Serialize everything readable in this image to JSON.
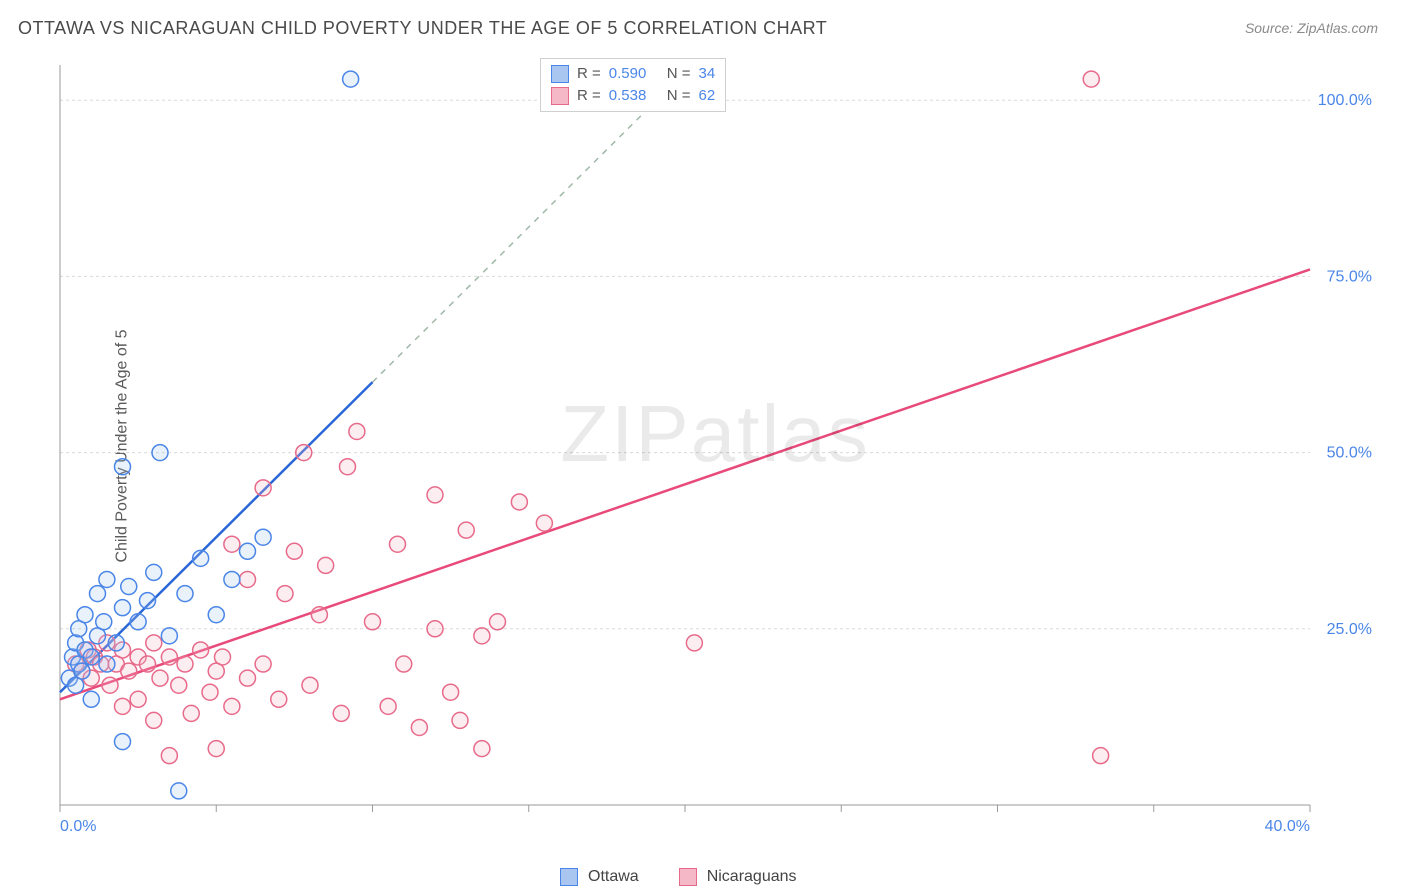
{
  "title": "OTTAWA VS NICARAGUAN CHILD POVERTY UNDER THE AGE OF 5 CORRELATION CHART",
  "source": "Source: ZipAtlas.com",
  "ylabel": "Child Poverty Under the Age of 5",
  "watermark_zip": "ZIP",
  "watermark_atlas": "atlas",
  "chart": {
    "type": "scatter",
    "xlim": [
      0,
      40
    ],
    "ylim": [
      0,
      105
    ],
    "x_first_tick": 0.0,
    "x_last_tick": 40.0,
    "x_tick_step": 5.0,
    "y_ticks": [
      25.0,
      50.0,
      75.0,
      100.0
    ],
    "grid_color": "#d9d9d9",
    "axis_color": "#9a9a9a",
    "label_color": "#4a86e8",
    "background_color": "#ffffff",
    "marker_radius": 8,
    "marker_stroke_width": 1.5,
    "marker_fill_opacity": 0.25,
    "series": {
      "ottawa": {
        "label": "Ottawa",
        "color_stroke": "#4a86e8",
        "color_fill": "#a8c6f0",
        "trend_color": "#2a66d8",
        "trend_dash_color": "#9fb8a8",
        "trend": {
          "x1": 0,
          "y1": 16,
          "x2": 10,
          "y2": 60,
          "dash_to_x": 19
        },
        "points": [
          [
            0.3,
            18
          ],
          [
            0.4,
            21
          ],
          [
            0.5,
            17
          ],
          [
            0.5,
            23
          ],
          [
            0.6,
            20
          ],
          [
            0.6,
            25
          ],
          [
            0.7,
            19
          ],
          [
            0.8,
            22
          ],
          [
            0.8,
            27
          ],
          [
            1.0,
            15
          ],
          [
            1.0,
            21
          ],
          [
            1.2,
            24
          ],
          [
            1.2,
            30
          ],
          [
            1.4,
            26
          ],
          [
            1.5,
            20
          ],
          [
            1.5,
            32
          ],
          [
            1.8,
            23
          ],
          [
            2.0,
            28
          ],
          [
            2.0,
            48
          ],
          [
            2.2,
            31
          ],
          [
            2.5,
            26
          ],
          [
            2.8,
            29
          ],
          [
            3.0,
            33
          ],
          [
            3.2,
            50
          ],
          [
            3.5,
            24
          ],
          [
            4.0,
            30
          ],
          [
            4.5,
            35
          ],
          [
            5.0,
            27
          ],
          [
            5.5,
            32
          ],
          [
            6.0,
            36
          ],
          [
            6.5,
            38
          ],
          [
            3.8,
            2
          ],
          [
            2.0,
            9
          ],
          [
            9.3,
            103
          ]
        ]
      },
      "nicaraguans": {
        "label": "Nicaraguans",
        "color_stroke": "#e86a8a",
        "color_fill": "#f4b8c6",
        "trend_color": "#e84a7a",
        "trend": {
          "x1": 0,
          "y1": 15,
          "x2": 40,
          "y2": 76
        },
        "points": [
          [
            0.5,
            20
          ],
          [
            0.7,
            19
          ],
          [
            0.9,
            22
          ],
          [
            1.0,
            18
          ],
          [
            1.1,
            21
          ],
          [
            1.3,
            20
          ],
          [
            1.5,
            23
          ],
          [
            1.6,
            17
          ],
          [
            1.8,
            20
          ],
          [
            2.0,
            22
          ],
          [
            2.0,
            14
          ],
          [
            2.2,
            19
          ],
          [
            2.5,
            21
          ],
          [
            2.5,
            15
          ],
          [
            2.8,
            20
          ],
          [
            3.0,
            23
          ],
          [
            3.0,
            12
          ],
          [
            3.2,
            18
          ],
          [
            3.5,
            21
          ],
          [
            3.5,
            7
          ],
          [
            3.8,
            17
          ],
          [
            4.0,
            20
          ],
          [
            4.2,
            13
          ],
          [
            4.5,
            22
          ],
          [
            4.8,
            16
          ],
          [
            5.0,
            19
          ],
          [
            5.0,
            8
          ],
          [
            5.2,
            21
          ],
          [
            5.5,
            14
          ],
          [
            5.5,
            37
          ],
          [
            6.0,
            18
          ],
          [
            6.0,
            32
          ],
          [
            6.5,
            20
          ],
          [
            6.5,
            45
          ],
          [
            7.0,
            15
          ],
          [
            7.2,
            30
          ],
          [
            7.5,
            36
          ],
          [
            7.8,
            50
          ],
          [
            8.0,
            17
          ],
          [
            8.3,
            27
          ],
          [
            8.5,
            34
          ],
          [
            9.0,
            13
          ],
          [
            9.2,
            48
          ],
          [
            9.5,
            53
          ],
          [
            10.0,
            26
          ],
          [
            10.5,
            14
          ],
          [
            10.8,
            37
          ],
          [
            11.0,
            20
          ],
          [
            11.5,
            11
          ],
          [
            12.0,
            25
          ],
          [
            12.5,
            16
          ],
          [
            13.0,
            39
          ],
          [
            13.5,
            8
          ],
          [
            14.0,
            26
          ],
          [
            14.7,
            43
          ],
          [
            15.5,
            40
          ],
          [
            12.8,
            12
          ],
          [
            13.5,
            24
          ],
          [
            20.3,
            23
          ],
          [
            12.0,
            44
          ],
          [
            33.0,
            103
          ],
          [
            33.3,
            7
          ]
        ]
      }
    }
  },
  "stats_legend": {
    "r_label": "R =",
    "n_label": "N =",
    "rows": [
      {
        "swatch_fill": "#a8c6f0",
        "swatch_stroke": "#4a86e8",
        "r": "0.590",
        "n": "34"
      },
      {
        "swatch_fill": "#f4b8c6",
        "swatch_stroke": "#e86a8a",
        "r": "0.538",
        "n": "62"
      }
    ]
  }
}
